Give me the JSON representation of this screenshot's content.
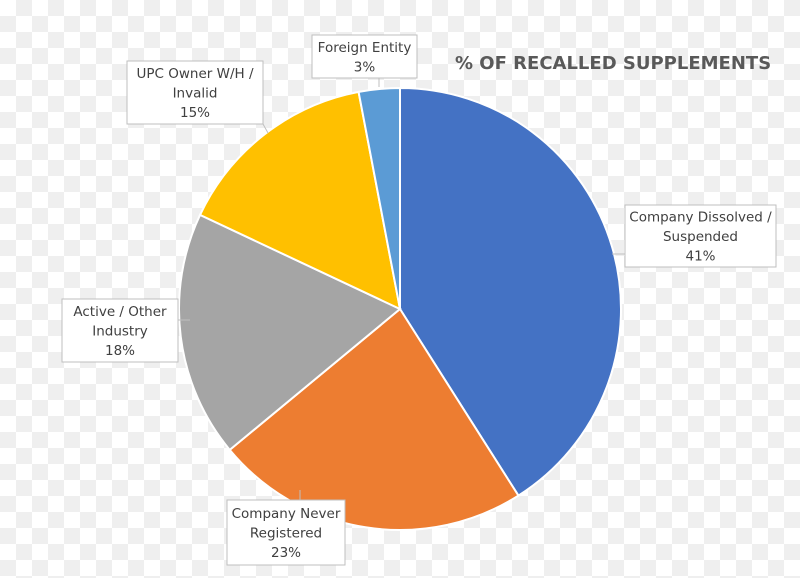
{
  "chart_data": {
    "type": "pie",
    "title": "% OF RECALLED SUPPLEMENTS",
    "start": "top, clockwise",
    "slices": [
      {
        "label": [
          "Company Dissolved /",
          "Suspended"
        ],
        "value": 41,
        "display": "41%",
        "color": "#4472C4"
      },
      {
        "label": [
          "Company Never",
          "Registered"
        ],
        "value": 23,
        "display": "23%",
        "color": "#ED7D31"
      },
      {
        "label": [
          "Active / Other",
          "Industry"
        ],
        "value": 18,
        "display": "18%",
        "color": "#A5A5A5"
      },
      {
        "label": [
          "UPC Owner W/H /",
          "Invalid"
        ],
        "value": 15,
        "display": "15%",
        "color": "#FFC000"
      },
      {
        "label": [
          "Foreign Entity"
        ],
        "value": 3,
        "display": "3%",
        "color": "#5B9BD5"
      }
    ]
  }
}
